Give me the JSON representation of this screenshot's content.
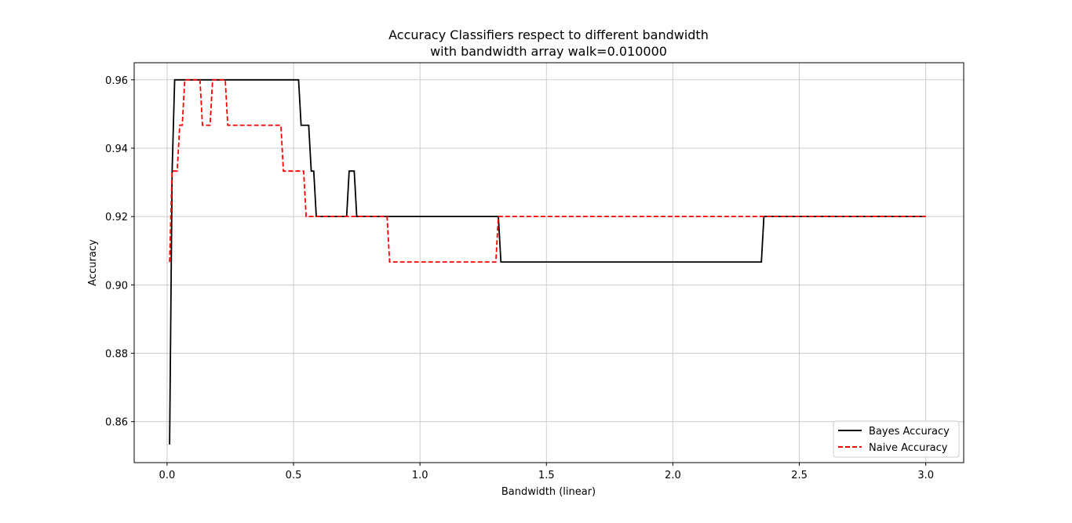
{
  "chart_data": {
    "type": "line",
    "title": "Accuracy Classifiers respect to different bandwidth",
    "subtitle": "with bandwidth array walk=0.010000",
    "xlabel": "Bandwidth (linear)",
    "ylabel": "Accuracy",
    "xlim": [
      -0.13,
      3.15
    ],
    "ylim": [
      0.848,
      0.965
    ],
    "xticks": [
      0.0,
      0.5,
      1.0,
      1.5,
      2.0,
      2.5,
      3.0
    ],
    "xtick_labels": [
      "0.0",
      "0.5",
      "1.0",
      "1.5",
      "2.0",
      "2.5",
      "3.0"
    ],
    "yticks": [
      0.86,
      0.88,
      0.9,
      0.92,
      0.94,
      0.96
    ],
    "ytick_labels": [
      "0.86",
      "0.88",
      "0.90",
      "0.92",
      "0.94",
      "0.96"
    ],
    "grid": true,
    "legend_position": "lower-right",
    "series": [
      {
        "name": "Bayes Accuracy",
        "color": "#000000",
        "style": "solid",
        "x": [
          0.01,
          0.02,
          0.03,
          0.52,
          0.53,
          0.56,
          0.57,
          0.58,
          0.59,
          0.71,
          0.72,
          0.74,
          0.75,
          1.31,
          1.32,
          2.35,
          2.36,
          3.0
        ],
        "y": [
          0.8533,
          0.9333,
          0.96,
          0.96,
          0.9467,
          0.9467,
          0.9333,
          0.9333,
          0.92,
          0.92,
          0.9333,
          0.9333,
          0.92,
          0.92,
          0.9067,
          0.9067,
          0.92,
          0.92
        ]
      },
      {
        "name": "Naive Accuracy",
        "color": "#ff0000",
        "style": "dashed",
        "x": [
          0.01,
          0.02,
          0.04,
          0.05,
          0.06,
          0.07,
          0.13,
          0.14,
          0.17,
          0.18,
          0.23,
          0.24,
          0.45,
          0.46,
          0.54,
          0.55,
          0.87,
          0.88,
          1.3,
          1.31,
          3.0
        ],
        "y": [
          0.9067,
          0.9333,
          0.9333,
          0.9467,
          0.9467,
          0.96,
          0.96,
          0.9467,
          0.9467,
          0.96,
          0.96,
          0.9467,
          0.9467,
          0.9333,
          0.9333,
          0.92,
          0.92,
          0.9067,
          0.9067,
          0.92,
          0.92
        ]
      }
    ]
  }
}
